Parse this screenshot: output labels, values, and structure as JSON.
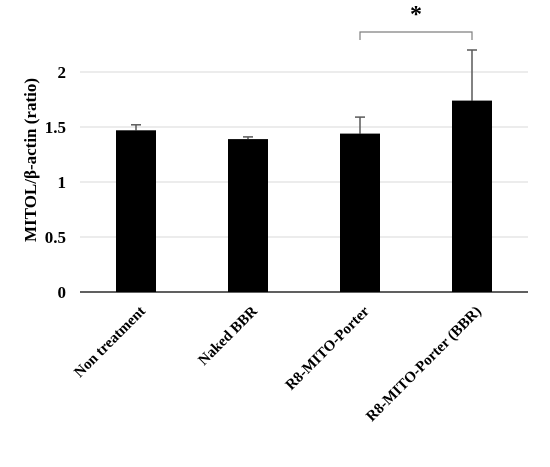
{
  "chart_data": {
    "type": "bar",
    "categories": [
      "Non treatment",
      "Naked BBR",
      "R8-MITO-Porter",
      "R8-MITO-Porter (BBR)"
    ],
    "values": [
      1.47,
      1.39,
      1.44,
      1.74
    ],
    "error_plus": [
      0.05,
      0.02,
      0.15,
      0.46
    ],
    "ylabel": "MITOL/β-actin (ratio)",
    "xlabel": "",
    "title": "",
    "ylim": [
      0,
      2.2
    ],
    "yticks": [
      0,
      0.5,
      1,
      1.5,
      2
    ],
    "ytick_labels": [
      "0",
      "0.5",
      "1",
      "1.5",
      "2"
    ],
    "grid": true,
    "bar_color": "#000000",
    "grid_color": "#d9d9d9",
    "significance": {
      "from": 2,
      "to": 3,
      "label": "*"
    }
  }
}
